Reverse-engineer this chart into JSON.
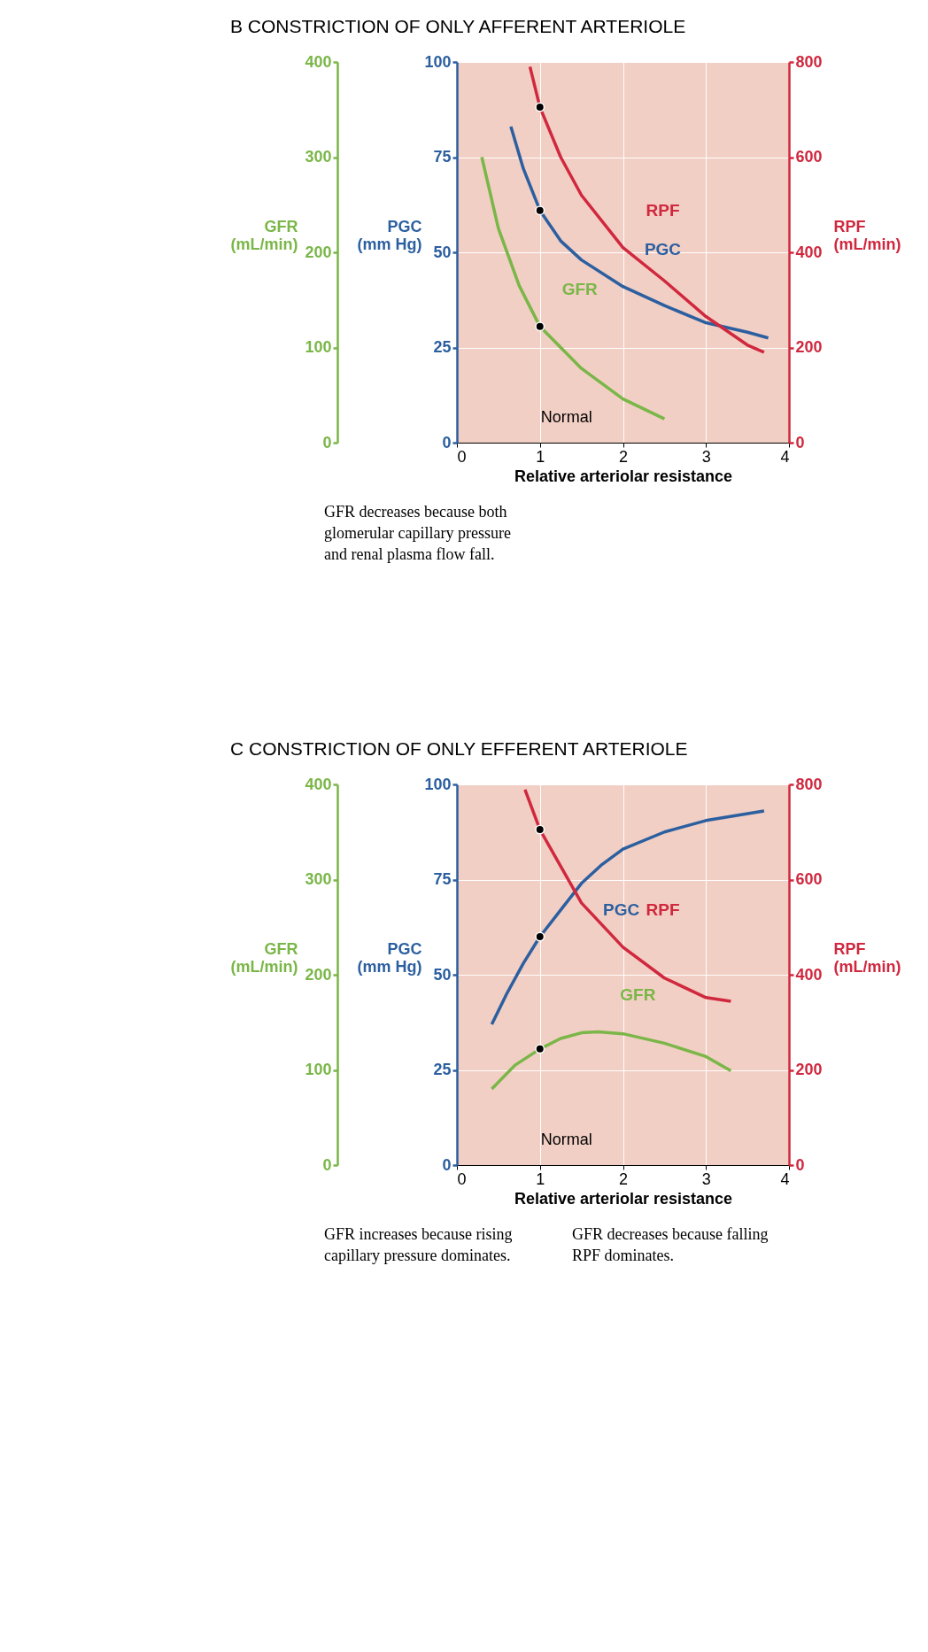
{
  "chart_data": [
    {
      "type": "line",
      "title": "B CONSTRICTION OF ONLY AFFERENT ARTERIOLE",
      "xlabel": "Relative arteriolar resistance",
      "xlim": [
        0,
        4
      ],
      "xticks": [
        0,
        1,
        2,
        3,
        4
      ],
      "ylabel": "PGC (mm Hg)",
      "ylim": [
        0,
        100
      ],
      "yticks": [
        0,
        25,
        50,
        75,
        100
      ],
      "y2label": "RPF (mL/min)",
      "y2lim": [
        0,
        800
      ],
      "y2ticks": [
        0,
        200,
        400,
        600,
        800
      ],
      "y3label": "GFR (mL/min)",
      "y3lim": [
        0,
        400
      ],
      "y3ticks": [
        0,
        100,
        200,
        300,
        400
      ],
      "grid": true,
      "series": [
        {
          "name": "PGC",
          "type": "line",
          "color": "#2c5fa0",
          "marker": "none",
          "x": [
            0.65,
            0.8,
            1,
            1.25,
            1.5,
            2,
            2.5,
            3,
            3.5,
            3.75
          ],
          "values": [
            83,
            72,
            61,
            53,
            48,
            41,
            36,
            31.5,
            29,
            27.5
          ]
        },
        {
          "name": "RPF",
          "type": "line",
          "axis": "y2",
          "color": "#d0283e",
          "marker": "none",
          "x": [
            0.88,
            1,
            1.25,
            1.5,
            2,
            2.5,
            3,
            3.5,
            3.7
          ],
          "values": [
            790,
            705,
            600,
            520,
            410,
            340,
            265,
            205,
            190
          ]
        },
        {
          "name": "GFR",
          "type": "line",
          "axis": "y3",
          "color": "#7ab648",
          "marker": "none",
          "x": [
            0.3,
            0.5,
            0.75,
            1,
            1.5,
            2,
            2.5
          ],
          "values": [
            300,
            225,
            165,
            122,
            78,
            46,
            25
          ]
        },
        {
          "type": "scatter",
          "color": "#000000",
          "marker": "circle",
          "x": [
            1
          ],
          "values": [
            61
          ]
        },
        {
          "type": "scatter",
          "axis": "y2",
          "color": "#000000",
          "marker": "circle",
          "x": [
            1
          ],
          "values": [
            705
          ]
        },
        {
          "type": "scatter",
          "axis": "y3",
          "color": "#000000",
          "marker": "circle",
          "x": [
            1
          ],
          "values": [
            122
          ]
        }
      ],
      "annotations": [
        "Normal",
        "GFR decreases because both glomerular capillary pressure and renal plasma flow fall."
      ]
    },
    {
      "type": "line",
      "title": "C CONSTRICTION OF ONLY EFFERENT ARTERIOLE",
      "xlabel": "Relative arteriolar resistance",
      "xlim": [
        0,
        4
      ],
      "xticks": [
        0,
        1,
        2,
        3,
        4
      ],
      "ylabel": "PGC (mm Hg)",
      "ylim": [
        0,
        100
      ],
      "yticks": [
        0,
        25,
        50,
        75,
        100
      ],
      "y2label": "RPF (mL/min)",
      "y2lim": [
        0,
        800
      ],
      "y2ticks": [
        0,
        200,
        400,
        600,
        800
      ],
      "y3label": "GFR (mL/min)",
      "y3lim": [
        0,
        400
      ],
      "y3ticks": [
        0,
        100,
        200,
        300,
        400
      ],
      "grid": true,
      "series": [
        {
          "name": "PGC",
          "type": "line",
          "color": "#2c5fa0",
          "marker": "none",
          "x": [
            0.42,
            0.6,
            0.8,
            1,
            1.25,
            1.5,
            1.75,
            2,
            2.5,
            3,
            3.7
          ],
          "values": [
            37,
            45,
            53,
            60,
            67,
            74,
            79,
            83,
            87.5,
            90.5,
            93
          ]
        },
        {
          "name": "RPF",
          "type": "line",
          "axis": "y2",
          "color": "#d0283e",
          "marker": "none",
          "x": [
            0.82,
            1,
            1.5,
            2,
            2.5,
            3,
            3.3
          ],
          "values": [
            789,
            705,
            551,
            458,
            393,
            352,
            344
          ]
        },
        {
          "name": "GFR",
          "type": "line",
          "axis": "y3",
          "color": "#7ab648",
          "marker": "none",
          "x": [
            0.42,
            0.7,
            1,
            1.25,
            1.5,
            1.7,
            2,
            2.5,
            3,
            3.3
          ],
          "values": [
            80,
            105,
            122,
            133,
            139,
            140,
            138,
            128,
            114,
            99
          ]
        },
        {
          "type": "scatter",
          "color": "#000000",
          "marker": "circle",
          "x": [
            1
          ],
          "values": [
            60
          ]
        },
        {
          "type": "scatter",
          "axis": "y2",
          "color": "#000000",
          "marker": "circle",
          "x": [
            1
          ],
          "values": [
            705
          ]
        },
        {
          "type": "scatter",
          "axis": "y3",
          "color": "#000000",
          "marker": "circle",
          "x": [
            1
          ],
          "values": [
            122
          ]
        }
      ],
      "annotations": [
        "Normal",
        "GFR increases because rising capillary pressure dominates.",
        "GFR decreases because falling RPF dominates."
      ]
    }
  ]
}
